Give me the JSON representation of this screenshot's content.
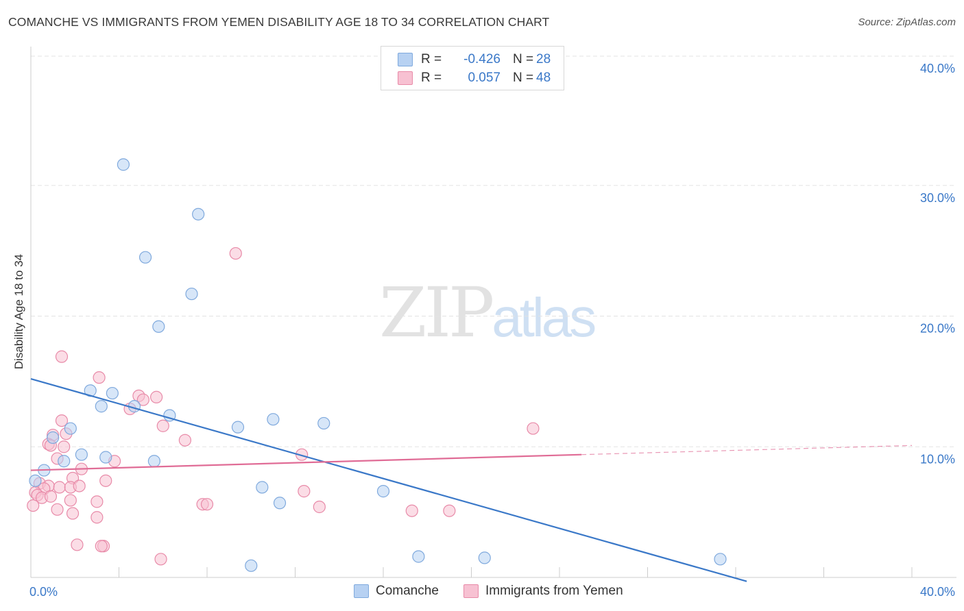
{
  "title": "COMANCHE VS IMMIGRANTS FROM YEMEN DISABILITY AGE 18 TO 34 CORRELATION CHART",
  "source": "Source: ZipAtlas.com",
  "watermark": {
    "zip": "ZIP",
    "atlas": "atlas"
  },
  "legend": {
    "rows": [
      {
        "r_label": "R =",
        "r_value": "-0.426",
        "n_label": "N =",
        "n_value": "28"
      },
      {
        "r_label": "R =",
        "r_value": "0.057",
        "n_label": "N =",
        "n_value": "48"
      }
    ]
  },
  "bottom_legend": {
    "comanche": "Comanche",
    "yemen": "Immigrants from Yemen"
  },
  "colors": {
    "comanche_fill": "#b7d1f2",
    "comanche_stroke": "#7fa9dd",
    "comanche_line": "#3a78c8",
    "yemen_fill": "#f7c1d2",
    "yemen_stroke": "#e88aa8",
    "yemen_line": "#e06c96",
    "tick_label": "#3a78c8",
    "grid": "#e3e3e3"
  },
  "chart_data": {
    "type": "scatter",
    "title": "COMANCHE VS IMMIGRANTS FROM YEMEN DISABILITY AGE 18 TO 34 CORRELATION CHART",
    "xlabel": "",
    "ylabel": "Disability Age 18 to 34",
    "xlim": [
      0,
      40
    ],
    "ylim": [
      0,
      40
    ],
    "x_tick_labels": [
      "0.0%",
      "40.0%"
    ],
    "y_ticks": [
      10,
      20,
      30,
      40
    ],
    "y_tick_labels": [
      "10.0%",
      "20.0%",
      "30.0%",
      "40.0%"
    ],
    "grid": true,
    "series": [
      {
        "name": "Comanche",
        "r": -0.426,
        "n": 28,
        "trend": {
          "x": [
            0,
            32.5
          ],
          "y": [
            15.2,
            -0.3
          ]
        },
        "points": [
          [
            4.2,
            31.6
          ],
          [
            7.6,
            27.8
          ],
          [
            5.2,
            24.5
          ],
          [
            7.3,
            21.7
          ],
          [
            5.8,
            19.2
          ],
          [
            2.7,
            14.3
          ],
          [
            3.7,
            14.1
          ],
          [
            3.2,
            13.1
          ],
          [
            4.7,
            13.1
          ],
          [
            6.3,
            12.4
          ],
          [
            11.0,
            12.1
          ],
          [
            13.3,
            11.8
          ],
          [
            9.4,
            11.5
          ],
          [
            1.8,
            11.4
          ],
          [
            1.0,
            10.7
          ],
          [
            2.3,
            9.4
          ],
          [
            3.4,
            9.2
          ],
          [
            1.5,
            8.9
          ],
          [
            5.6,
            8.9
          ],
          [
            0.6,
            8.2
          ],
          [
            0.2,
            7.4
          ],
          [
            10.5,
            6.9
          ],
          [
            16.0,
            6.6
          ],
          [
            11.3,
            5.7
          ],
          [
            17.6,
            1.6
          ],
          [
            20.6,
            1.5
          ],
          [
            31.3,
            1.4
          ],
          [
            10.0,
            0.9
          ]
        ]
      },
      {
        "name": "Immigrants from Yemen",
        "r": 0.057,
        "n": 48,
        "trend": {
          "x": [
            0,
            25
          ],
          "y": [
            8.2,
            9.4
          ]
        },
        "trend_dashed": {
          "x": [
            25,
            40
          ],
          "y": [
            9.4,
            10.1
          ]
        },
        "points": [
          [
            9.3,
            24.8
          ],
          [
            1.4,
            16.9
          ],
          [
            3.1,
            15.3
          ],
          [
            4.9,
            13.9
          ],
          [
            5.7,
            13.8
          ],
          [
            5.1,
            13.6
          ],
          [
            4.5,
            12.9
          ],
          [
            1.4,
            12.0
          ],
          [
            6.0,
            11.6
          ],
          [
            22.8,
            11.4
          ],
          [
            1.6,
            11.0
          ],
          [
            1.0,
            10.9
          ],
          [
            0.8,
            10.2
          ],
          [
            7.0,
            10.5
          ],
          [
            1.5,
            10.0
          ],
          [
            0.9,
            10.1
          ],
          [
            1.2,
            9.1
          ],
          [
            3.8,
            8.9
          ],
          [
            12.3,
            9.4
          ],
          [
            2.3,
            8.3
          ],
          [
            1.9,
            7.6
          ],
          [
            3.4,
            7.4
          ],
          [
            0.4,
            7.2
          ],
          [
            0.8,
            7.0
          ],
          [
            1.3,
            6.9
          ],
          [
            0.6,
            6.8
          ],
          [
            1.8,
            6.9
          ],
          [
            2.2,
            7.0
          ],
          [
            0.2,
            6.5
          ],
          [
            0.3,
            6.3
          ],
          [
            0.5,
            6.1
          ],
          [
            0.9,
            6.2
          ],
          [
            12.4,
            6.6
          ],
          [
            0.1,
            5.5
          ],
          [
            1.8,
            5.9
          ],
          [
            3.0,
            5.8
          ],
          [
            7.8,
            5.6
          ],
          [
            8.0,
            5.6
          ],
          [
            13.1,
            5.4
          ],
          [
            1.2,
            5.2
          ],
          [
            17.3,
            5.1
          ],
          [
            19.0,
            5.1
          ],
          [
            1.9,
            4.9
          ],
          [
            3.0,
            4.6
          ],
          [
            2.1,
            2.5
          ],
          [
            3.3,
            2.4
          ],
          [
            3.2,
            2.4
          ],
          [
            5.9,
            1.4
          ]
        ]
      }
    ]
  }
}
